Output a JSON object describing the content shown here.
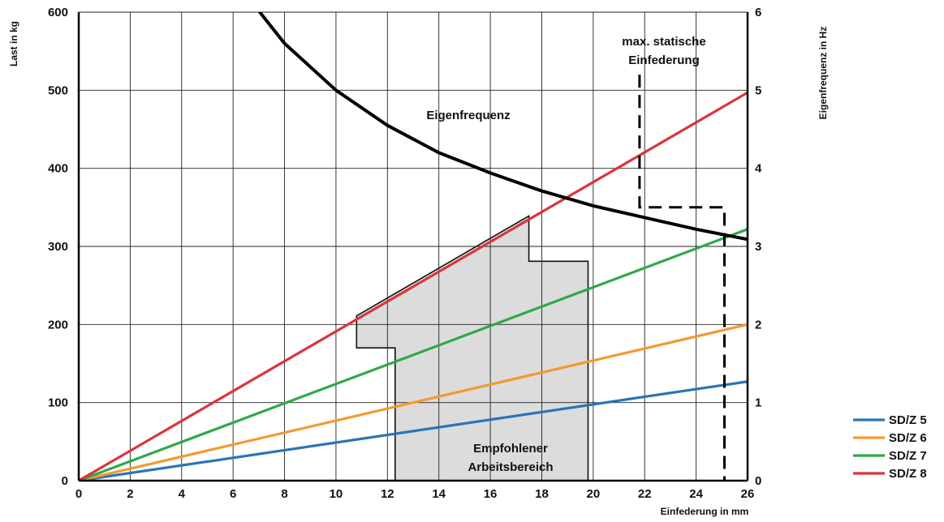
{
  "chart_data": {
    "type": "line",
    "xlabel": "Einfederung in mm",
    "ylabel": "Last in kg",
    "y2label": "Eigenfrequenz in Hz",
    "xlim": [
      0,
      26
    ],
    "ylim": [
      0,
      600
    ],
    "y2lim": [
      0,
      6
    ],
    "x_ticks": [
      0,
      2,
      4,
      6,
      8,
      10,
      12,
      14,
      16,
      18,
      20,
      22,
      24,
      26
    ],
    "y_ticks": [
      0,
      100,
      200,
      300,
      400,
      500,
      600
    ],
    "y2_ticks": [
      0,
      1,
      2,
      3,
      4,
      5,
      6
    ],
    "grid": true,
    "legend_position": "bottom-right",
    "series": [
      {
        "name": "SD/Z 5",
        "color": "#2a74b6",
        "x": [
          0,
          26
        ],
        "y": [
          0,
          127
        ]
      },
      {
        "name": "SD/Z 6",
        "color": "#f39a32",
        "x": [
          0,
          26
        ],
        "y": [
          0,
          200
        ]
      },
      {
        "name": "SD/Z 7",
        "color": "#2fa84a",
        "x": [
          0,
          26
        ],
        "y": [
          0,
          322
        ]
      },
      {
        "name": "SD/Z 8",
        "color": "#d9363a",
        "x": [
          0,
          26
        ],
        "y": [
          0,
          497
        ]
      }
    ],
    "eigenfrequenz": {
      "label": "Eigenfrequenz",
      "color": "#000000",
      "x": [
        6.8,
        8,
        10,
        12,
        14,
        16,
        18,
        20,
        22,
        24,
        26
      ],
      "y_hz": [
        6.1,
        5.6,
        5.0,
        4.55,
        4.2,
        3.94,
        3.71,
        3.52,
        3.37,
        3.22,
        3.09
      ]
    },
    "max_einfederung": {
      "label_line1": "max. statische",
      "label_line2": "Einfederung",
      "x": [
        21.8,
        21.8,
        25.1,
        25.1
      ],
      "y": [
        520,
        350,
        350,
        0
      ]
    },
    "arbeitsbereich": {
      "label_line1": "Empfohlener",
      "label_line2": "Arbeitsbereich",
      "fill": "#dcdcdc",
      "x": [
        12.3,
        12.3,
        10.8,
        10.8,
        17.5,
        17.5,
        19.8,
        19.8
      ],
      "y": [
        0,
        170,
        170,
        211,
        339,
        281,
        281,
        0
      ]
    }
  }
}
